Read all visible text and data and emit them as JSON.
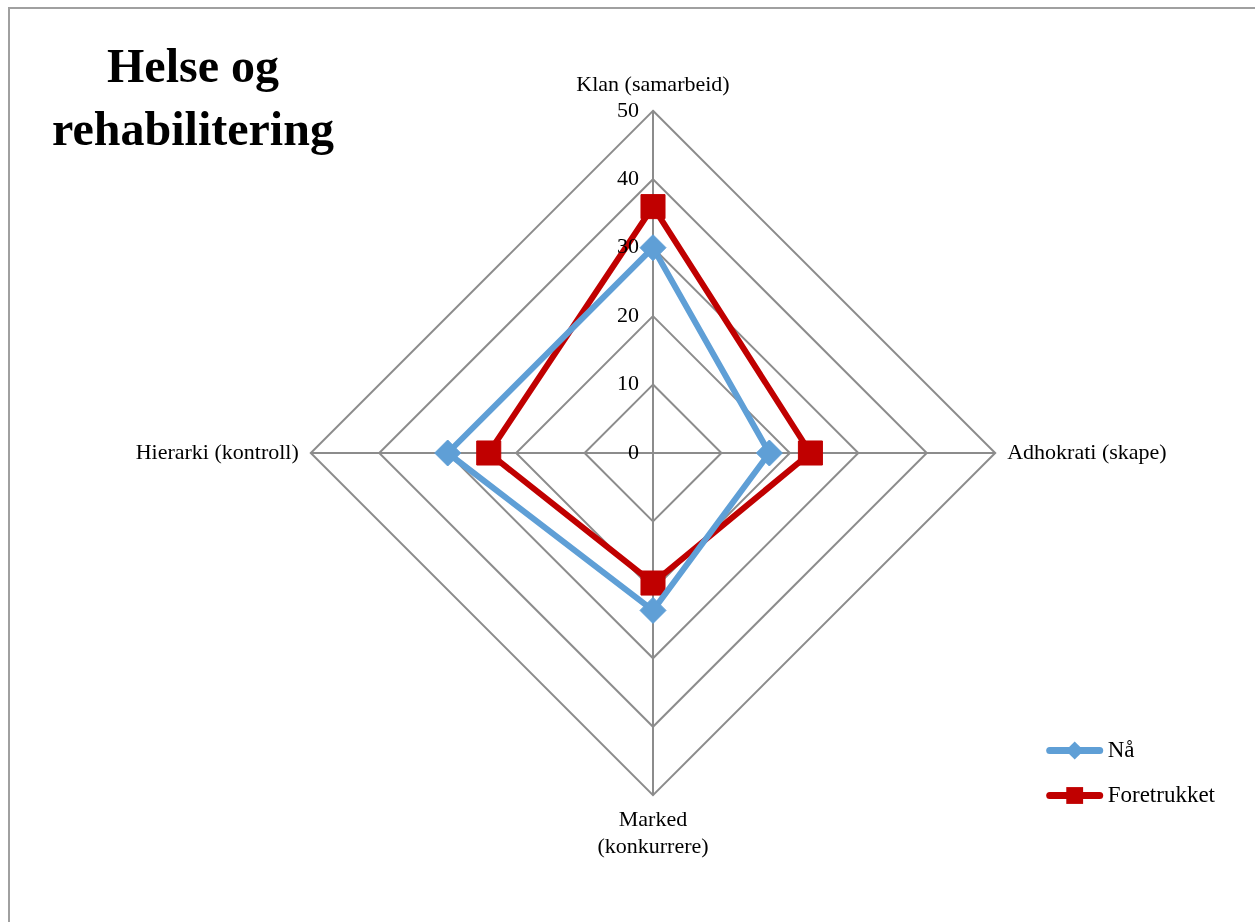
{
  "chart_data": {
    "type": "radar",
    "title": "Helse og rehabilitering",
    "categories": [
      "Klan (samarbeid)",
      "Adhokrati (skape)",
      "Marked (konkurrere)",
      "Hierarki (kontroll)"
    ],
    "series": [
      {
        "name": "Nå",
        "color": "#5f9fd6",
        "values": [
          30,
          17,
          23,
          30
        ],
        "marker": "diamond"
      },
      {
        "name": "Foretrukket",
        "color": "#c00000",
        "values": [
          36,
          23,
          19,
          24
        ],
        "marker": "square"
      }
    ],
    "ylim": [
      0,
      50
    ],
    "yticks": [
      0,
      10,
      20,
      30,
      40,
      50
    ],
    "grid": true,
    "legend": "bottom right"
  }
}
